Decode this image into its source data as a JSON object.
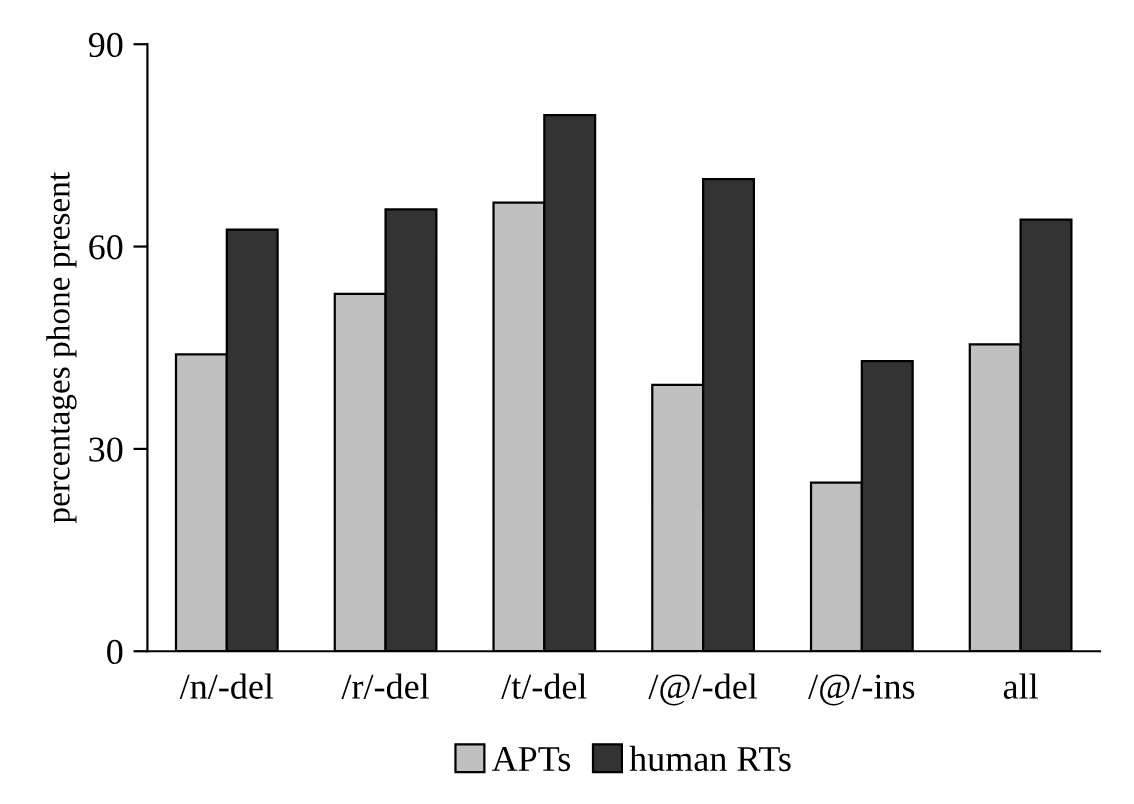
{
  "chart_data": {
    "type": "bar",
    "ylabel": "percentages phone present",
    "categories": [
      "/n/-del",
      "/r/-del",
      "/t/-del",
      "/@/-del",
      "/@/-ins",
      "all"
    ],
    "series": [
      {
        "name": "APTs",
        "color": "#c0c0c0",
        "values": [
          44,
          53,
          66.5,
          39.5,
          25,
          45.5
        ]
      },
      {
        "name": "human RTs",
        "color": "#333333",
        "values": [
          62.5,
          65.5,
          79.5,
          70,
          43,
          64
        ]
      }
    ],
    "ylim": [
      0,
      90
    ],
    "yticks": [
      0,
      30,
      60,
      90
    ],
    "grid": false,
    "legend": "bottom"
  }
}
